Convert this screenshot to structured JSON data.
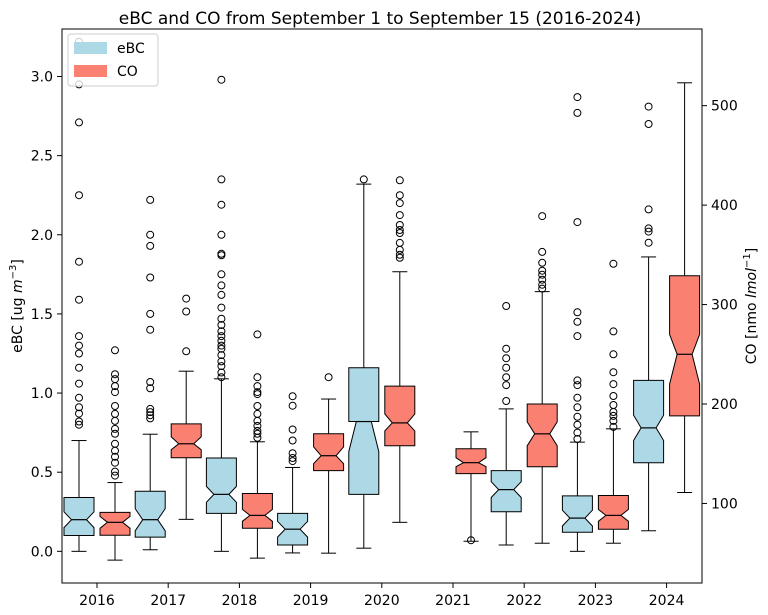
{
  "chart_data": {
    "type": "box",
    "title": "eBC and CO from September 1 to September 15 (2016-2024)",
    "categories": [
      "2016",
      "2017",
      "2018",
      "2019",
      "2020",
      "2021",
      "2022",
      "2023",
      "2024"
    ],
    "y_left": {
      "label_prefix": "eBC [ug ",
      "label_italic": "m",
      "label_sup": "−3",
      "label_suffix": "]",
      "range": [
        -0.2,
        3.3
      ],
      "ticks": [
        "0.0",
        "0.5",
        "1.0",
        "1.5",
        "2.0",
        "2.5",
        "3.0"
      ]
    },
    "y_right": {
      "label_prefix": "CO [nmo ",
      "label_italic": "lmol",
      "label_sup": "−1",
      "label_suffix": "]",
      "range": [
        20.0,
        577.1
      ],
      "ticks": [
        "100",
        "200",
        "300",
        "400",
        "500"
      ]
    },
    "legend": {
      "position": "top-left",
      "items": [
        {
          "label": "eBC",
          "color": "#add8e6"
        },
        {
          "label": "CO",
          "color": "#fa8072"
        }
      ]
    },
    "series": [
      {
        "name": "eBC",
        "axis": "left",
        "color": "#add8e6",
        "boxes": [
          {
            "year": "2016",
            "whislo": 0.0,
            "q1": 0.1,
            "med": 0.2,
            "q3": 0.34,
            "whishi": 0.7,
            "notch": [
              0.15,
              0.25
            ],
            "fliers": [
              0.8,
              0.82,
              0.87,
              0.91,
              0.97,
              1.06,
              1.16,
              1.25,
              1.3,
              1.36,
              1.59,
              1.83,
              2.25,
              2.71,
              2.95,
              3.22
            ]
          },
          {
            "year": "2017",
            "whislo": 0.01,
            "q1": 0.09,
            "med": 0.2,
            "q3": 0.38,
            "whishi": 0.74,
            "notch": [
              0.13,
              0.27
            ],
            "fliers": [
              0.84,
              0.86,
              0.88,
              0.9,
              1.03,
              1.07,
              1.4,
              1.5,
              1.73,
              1.93,
              2.0,
              2.22
            ]
          },
          {
            "year": "2018",
            "whislo": 0.0,
            "q1": 0.24,
            "med": 0.36,
            "q3": 0.59,
            "whishi": 1.09,
            "notch": [
              0.31,
              0.41
            ],
            "fliers": [
              1.1,
              1.13,
              1.17,
              1.2,
              1.24,
              1.28,
              1.3,
              1.33,
              1.36,
              1.39,
              1.43,
              1.47,
              1.54,
              1.62,
              1.68,
              1.75,
              1.87,
              1.88,
              2.0,
              2.19,
              2.35,
              2.98
            ]
          },
          {
            "year": "2019",
            "whislo": -0.01,
            "q1": 0.04,
            "med": 0.14,
            "q3": 0.24,
            "whishi": 0.53,
            "notch": [
              0.09,
              0.19
            ],
            "fliers": [
              0.57,
              0.59,
              0.62,
              0.7,
              0.77,
              0.92,
              0.98
            ]
          },
          {
            "year": "2020",
            "whislo": 0.02,
            "q1": 0.36,
            "med": 0.82,
            "q3": 1.16,
            "whishi": 2.32,
            "notch": [
              0.63,
              0.82
            ],
            "fliers": [
              2.35
            ]
          },
          {
            "year": "2021",
            "whislo": null,
            "q1": null,
            "med": null,
            "q3": null,
            "whishi": null,
            "notch": null,
            "fliers": []
          },
          {
            "year": "2022",
            "whislo": 0.04,
            "q1": 0.25,
            "med": 0.39,
            "q3": 0.51,
            "whishi": 0.9,
            "notch": [
              0.34,
              0.44
            ],
            "fliers": [
              0.95,
              1.05,
              1.1,
              1.16,
              1.22,
              1.28,
              1.55
            ]
          },
          {
            "year": "2023",
            "whislo": 0.0,
            "q1": 0.12,
            "med": 0.21,
            "q3": 0.35,
            "whishi": 0.69,
            "notch": [
              0.16,
              0.26
            ],
            "fliers": [
              0.71,
              0.75,
              0.8,
              0.85,
              0.91,
              0.97,
              1.05,
              1.08,
              1.36,
              1.45,
              1.51,
              2.08,
              2.77,
              2.87
            ]
          },
          {
            "year": "2024",
            "whislo": 0.13,
            "q1": 0.56,
            "med": 0.78,
            "q3": 1.08,
            "whishi": 1.86,
            "notch": [
              0.7,
              0.86
            ],
            "fliers": [
              1.95,
              2.02,
              2.04,
              2.16,
              2.7,
              2.81
            ]
          }
        ]
      },
      {
        "name": "CO",
        "axis": "right",
        "color": "#fa8072",
        "boxes": [
          {
            "year": "2016",
            "whislo": 43,
            "q1": 68,
            "med": 81,
            "q3": 91,
            "whishi": 121,
            "notch": [
              75,
              87
            ],
            "fliers": [
              128,
              132,
              141,
              147,
              153,
              160,
              170,
              175,
              183,
              190,
              198,
              212,
              218,
              225,
              230,
              254
            ]
          },
          {
            "year": "2017",
            "whislo": 84,
            "q1": 146,
            "med": 160,
            "q3": 180,
            "whishi": 233,
            "notch": [
              154,
              167
            ],
            "fliers": [
              253,
              293,
              306
            ]
          },
          {
            "year": "2018",
            "whislo": 45,
            "q1": 75,
            "med": 88,
            "q3": 110,
            "whishi": 162,
            "notch": [
              82,
              94
            ],
            "fliers": [
              166,
              170,
              173,
              178,
              183,
              190,
              198,
              210,
              212,
              218,
              227,
              270
            ]
          },
          {
            "year": "2019",
            "whislo": 50,
            "q1": 133,
            "med": 148,
            "q3": 170,
            "whishi": 205,
            "notch": [
              140,
              157
            ],
            "fliers": [
              227
            ]
          },
          {
            "year": "2020",
            "whislo": 81,
            "q1": 158,
            "med": 181,
            "q3": 218,
            "whishi": 333,
            "notch": [
              173,
              190
            ],
            "fliers": [
              347,
              350,
              355,
              362,
              372,
              375,
              380,
              390,
              402,
              410,
              425
            ]
          },
          {
            "year": "2021",
            "whislo": 62,
            "q1": 130,
            "med": 141,
            "q3": 155,
            "whishi": 172,
            "notch": [
              137,
              146
            ],
            "fliers": [
              63
            ]
          },
          {
            "year": "2022",
            "whislo": 60,
            "q1": 137,
            "med": 170,
            "q3": 200,
            "whishi": 313,
            "notch": [
              158,
              182
            ],
            "fliers": [
              316,
              320,
              325,
              330,
              334,
              342,
              353,
              389
            ]
          },
          {
            "year": "2023",
            "whislo": 60,
            "q1": 74,
            "med": 88,
            "q3": 108,
            "whishi": 175,
            "notch": [
              82,
              94
            ],
            "fliers": [
              177,
              183,
              188,
              192,
              199,
              208,
              220,
              232,
              250,
              273,
              341
            ]
          },
          {
            "year": "2024",
            "whislo": 111,
            "q1": 188,
            "med": 250,
            "q3": 329,
            "whishi": 523,
            "notch": [
              220,
              270
            ],
            "fliers": []
          }
        ]
      }
    ],
    "ticks_x": [
      "2016",
      "2017",
      "2018",
      "2019",
      "2020",
      "2021",
      "2022",
      "2023",
      "2024"
    ]
  }
}
